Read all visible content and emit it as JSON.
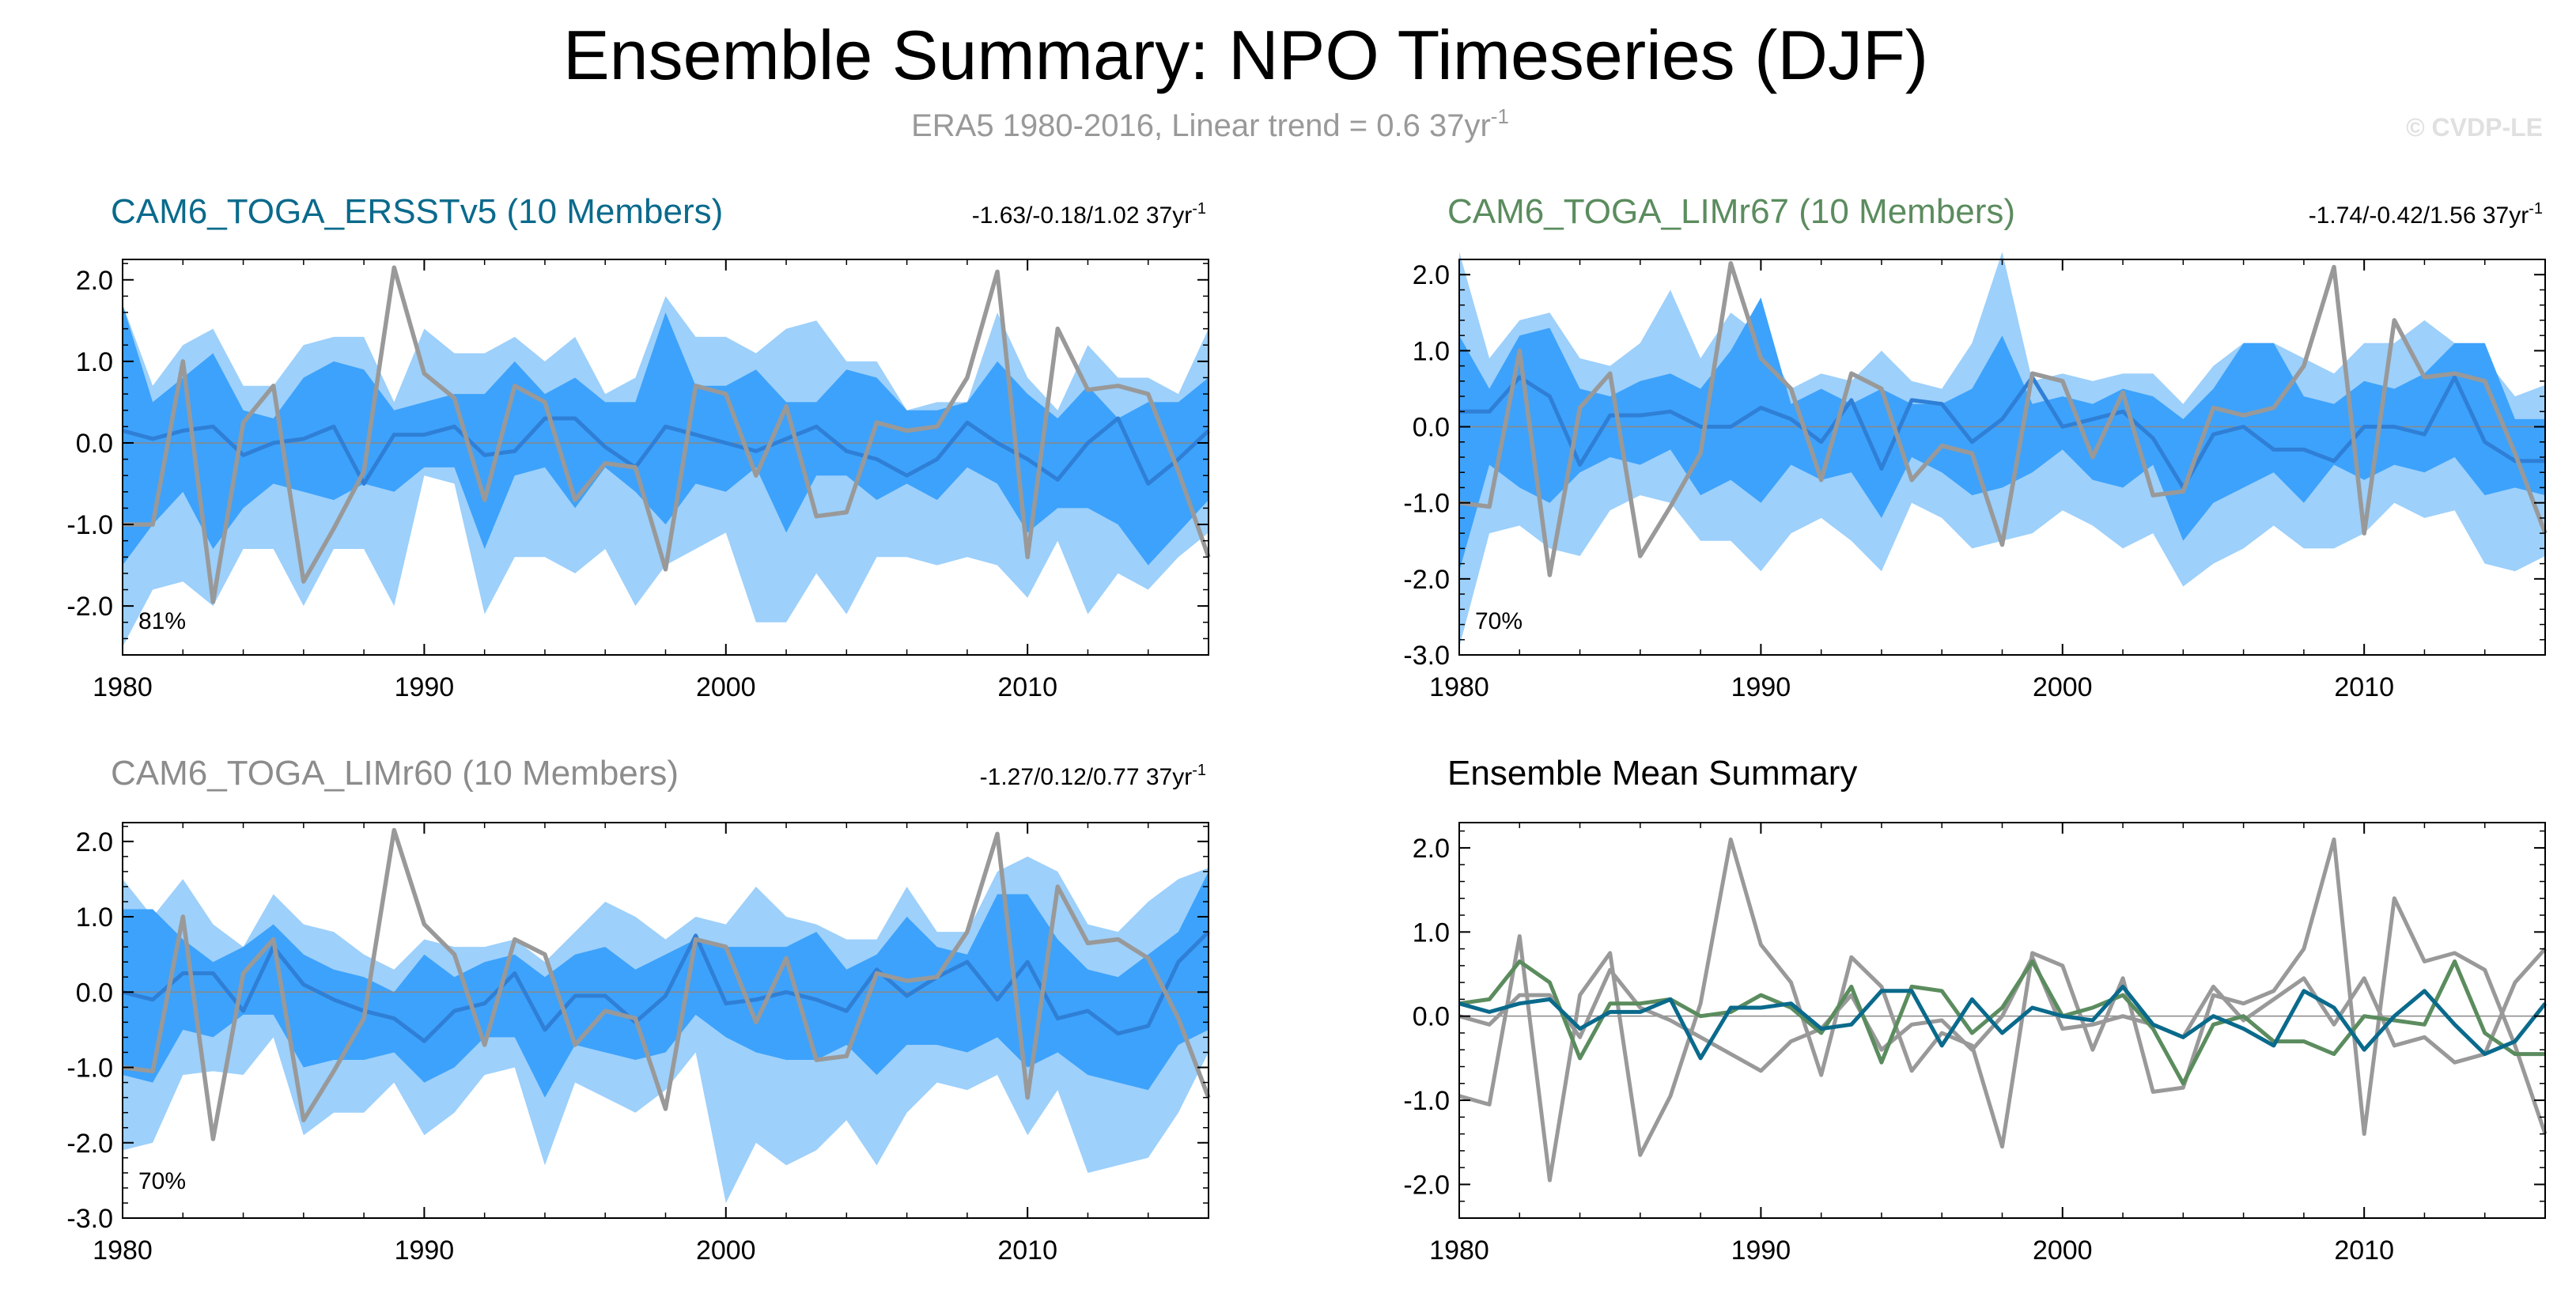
{
  "title": "Ensemble Summary: NPO Timeseries (DJF)",
  "subtitle": "ERA5 1980-2016, Linear trend = 0.6 37yr",
  "subtitle_sup": "-1",
  "credit": "© CVDP-LE",
  "colors": {
    "obs": "#999999",
    "outer_band": "#9dd0fb",
    "inner_band": "#3da2fb",
    "ens_mean": "#2f7fd6",
    "ersst": "#0a6a8c",
    "limr67": "#5b8c5e",
    "limr60": "#8c8c8c"
  },
  "chart_data": [
    {
      "type": "area",
      "panel": "CAM6_TOGA_ERSSTv5",
      "title": "CAM6_TOGA_ERSSTv5 (10 Members)",
      "title_color": "#0a6a8c",
      "trend": "-1.63/-0.18/1.02 37yr",
      "trend_sup": "-1",
      "percent": "81%",
      "xlim": [
        1980,
        2016
      ],
      "ylim": [
        -2.6,
        2.25
      ],
      "yticks": [
        -2.0,
        -1.0,
        0.0,
        1.0,
        2.0
      ],
      "yticklabels": [
        "-2.0",
        "-1.0",
        "0.0",
        "1.0",
        "2.0"
      ],
      "xticks": [
        1980,
        1990,
        2000,
        2010
      ],
      "xticklabels": [
        "1980",
        "1990",
        "2000",
        "2010"
      ],
      "series": [
        {
          "name": "outer",
          "min": [
            -2.5,
            -1.8,
            -1.7,
            -2.0,
            -1.3,
            -1.3,
            -2.0,
            -1.3,
            -1.3,
            -2.0,
            -0.4,
            -0.5,
            -2.1,
            -1.4,
            -1.4,
            -1.6,
            -1.3,
            -2.0,
            -1.5,
            -1.3,
            -1.1,
            -2.2,
            -2.2,
            -1.6,
            -2.1,
            -1.4,
            -1.4,
            -1.5,
            -1.4,
            -1.5,
            -1.9,
            -1.2,
            -2.1,
            -1.6,
            -1.8,
            -1.4,
            -1.1
          ],
          "max": [
            1.7,
            0.7,
            1.2,
            1.4,
            0.7,
            0.7,
            1.2,
            1.3,
            1.3,
            0.5,
            1.4,
            1.1,
            1.1,
            1.3,
            1.0,
            1.3,
            0.6,
            0.8,
            1.8,
            1.3,
            1.3,
            1.1,
            1.4,
            1.5,
            1.0,
            1.0,
            0.4,
            0.5,
            0.5,
            1.6,
            0.8,
            0.4,
            1.2,
            0.8,
            0.8,
            0.6,
            1.4
          ]
        },
        {
          "name": "inner",
          "min": [
            -1.5,
            -1.0,
            -0.6,
            -1.3,
            -0.8,
            -0.5,
            -0.6,
            -0.7,
            -0.5,
            -0.6,
            -0.3,
            -0.3,
            -1.3,
            -0.4,
            -0.3,
            -0.8,
            -0.3,
            -0.6,
            -1.0,
            -0.5,
            -0.6,
            -0.3,
            -1.1,
            -0.4,
            -0.4,
            -0.7,
            -0.5,
            -0.7,
            -0.3,
            -0.5,
            -1.1,
            -0.8,
            -0.8,
            -1.0,
            -1.5,
            -1.1,
            -0.7
          ],
          "max": [
            1.7,
            0.5,
            0.8,
            1.1,
            0.4,
            0.3,
            0.8,
            1.0,
            0.9,
            0.4,
            0.5,
            0.6,
            0.6,
            1.0,
            0.6,
            0.8,
            0.5,
            0.5,
            1.6,
            0.7,
            0.7,
            0.9,
            0.5,
            0.5,
            0.9,
            0.8,
            0.4,
            0.4,
            0.5,
            1.0,
            0.6,
            0.3,
            0.7,
            0.3,
            0.5,
            0.5,
            0.8
          ]
        },
        {
          "name": "ens_mean",
          "values": [
            0.15,
            0.05,
            0.15,
            0.2,
            -0.15,
            0.0,
            0.05,
            0.2,
            -0.5,
            0.1,
            0.1,
            0.2,
            -0.15,
            -0.1,
            0.3,
            0.3,
            -0.05,
            -0.3,
            0.2,
            0.1,
            0.0,
            -0.1,
            0.05,
            0.2,
            -0.1,
            -0.2,
            -0.4,
            -0.2,
            0.25,
            0.0,
            -0.2,
            -0.45,
            0.0,
            0.3,
            -0.5,
            -0.2,
            0.15
          ]
        },
        {
          "name": "obs",
          "values": [
            -1.0,
            -1.0,
            1.0,
            -1.95,
            0.25,
            0.7,
            -1.7,
            -1.05,
            -0.35,
            2.15,
            0.85,
            0.55,
            -0.7,
            0.7,
            0.5,
            -0.7,
            -0.25,
            -0.3,
            -1.55,
            0.7,
            0.6,
            -0.4,
            0.45,
            -0.9,
            -0.85,
            0.25,
            0.15,
            0.2,
            0.8,
            2.1,
            -1.4,
            1.4,
            0.65,
            0.7,
            0.6,
            -0.35,
            -1.4
          ]
        }
      ]
    },
    {
      "type": "area",
      "panel": "CAM6_TOGA_LIMr67",
      "title": "CAM6_TOGA_LIMr67 (10 Members)",
      "title_color": "#5b8c5e",
      "trend": "-1.74/-0.42/1.56 37yr",
      "trend_sup": "-1",
      "percent": "70%",
      "xlim": [
        1980,
        2016
      ],
      "ylim": [
        -3.0,
        2.2
      ],
      "yticks": [
        -3.0,
        -2.0,
        -1.0,
        0.0,
        1.0,
        2.0
      ],
      "yticklabels": [
        "-3.0",
        "-2.0",
        "-1.0",
        "0.0",
        "1.0",
        "2.0"
      ],
      "xticks": [
        1980,
        1990,
        2000,
        2010
      ],
      "xticklabels": [
        "1980",
        "1990",
        "2000",
        "2010"
      ],
      "series": [
        {
          "name": "outer",
          "min": [
            -2.9,
            -1.4,
            -1.3,
            -1.6,
            -1.7,
            -1.1,
            -0.9,
            -1.0,
            -1.5,
            -1.5,
            -1.9,
            -1.4,
            -1.2,
            -1.5,
            -1.9,
            -1.0,
            -1.2,
            -1.6,
            -1.5,
            -1.4,
            -1.1,
            -1.3,
            -1.6,
            -1.4,
            -2.1,
            -1.8,
            -1.6,
            -1.3,
            -1.6,
            -1.6,
            -1.4,
            -1.0,
            -1.2,
            -1.1,
            -1.8,
            -1.9,
            -1.7
          ],
          "max": [
            2.3,
            0.9,
            1.4,
            1.5,
            0.9,
            0.8,
            1.1,
            1.8,
            0.9,
            1.5,
            1.2,
            0.5,
            0.7,
            0.6,
            1.0,
            0.6,
            0.5,
            1.1,
            2.3,
            0.6,
            0.7,
            0.6,
            0.7,
            0.7,
            0.3,
            0.8,
            1.1,
            1.1,
            0.9,
            0.7,
            1.1,
            1.1,
            1.4,
            1.1,
            0.9,
            0.4,
            0.55
          ]
        },
        {
          "name": "inner",
          "min": [
            -1.9,
            -0.5,
            -0.8,
            -1.0,
            -0.6,
            -0.4,
            -0.5,
            -0.3,
            -0.9,
            -0.7,
            -1.0,
            -0.5,
            -0.7,
            -0.6,
            -1.2,
            -0.4,
            -0.6,
            -0.9,
            -0.8,
            -0.6,
            -0.3,
            -0.7,
            -0.8,
            -0.5,
            -1.5,
            -1.0,
            -0.8,
            -0.6,
            -1.0,
            -0.5,
            -0.7,
            -0.5,
            -0.6,
            -0.4,
            -0.9,
            -0.8,
            -0.9
          ],
          "max": [
            1.2,
            0.5,
            1.2,
            1.3,
            0.5,
            0.4,
            0.6,
            0.7,
            0.5,
            1.0,
            1.7,
            0.3,
            0.5,
            0.3,
            0.5,
            0.3,
            0.3,
            0.5,
            1.2,
            0.3,
            0.4,
            0.3,
            0.5,
            0.4,
            0.1,
            0.5,
            1.1,
            1.1,
            0.4,
            0.3,
            0.6,
            0.5,
            0.7,
            1.1,
            1.1,
            0.1,
            0.1
          ]
        },
        {
          "name": "ens_mean",
          "values": [
            0.2,
            0.2,
            0.65,
            0.4,
            -0.5,
            0.15,
            0.15,
            0.2,
            0.0,
            0.0,
            0.25,
            0.1,
            -0.2,
            0.35,
            -0.55,
            0.35,
            0.3,
            -0.2,
            0.1,
            0.65,
            0.0,
            0.1,
            0.2,
            -0.15,
            -0.8,
            -0.1,
            0.0,
            -0.3,
            -0.3,
            -0.45,
            0.0,
            0.0,
            -0.1,
            0.65,
            -0.2,
            -0.45,
            -0.45
          ]
        },
        {
          "name": "obs",
          "values": [
            -1.0,
            -1.05,
            1.0,
            -1.95,
            0.25,
            0.7,
            -1.7,
            -1.05,
            -0.35,
            2.15,
            0.9,
            0.5,
            -0.7,
            0.7,
            0.5,
            -0.7,
            -0.25,
            -0.35,
            -1.55,
            0.7,
            0.6,
            -0.4,
            0.45,
            -0.9,
            -0.85,
            0.25,
            0.15,
            0.25,
            0.8,
            2.1,
            -1.4,
            1.4,
            0.65,
            0.7,
            0.6,
            -0.35,
            -1.4
          ]
        }
      ]
    },
    {
      "type": "area",
      "panel": "CAM6_TOGA_LIMr60",
      "title": "CAM6_TOGA_LIMr60 (10 Members)",
      "title_color": "#8c8c8c",
      "trend": "-1.27/0.12/0.77 37yr",
      "trend_sup": "-1",
      "percent": "70%",
      "xlim": [
        1980,
        2016
      ],
      "ylim": [
        -3.0,
        2.25
      ],
      "yticks": [
        -3.0,
        -2.0,
        -1.0,
        0.0,
        1.0,
        2.0
      ],
      "yticklabels": [
        "-3.0",
        "-2.0",
        "-1.0",
        "0.0",
        "1.0",
        "2.0"
      ],
      "xticks": [
        1980,
        1990,
        2000,
        2010
      ],
      "xticklabels": [
        "1980",
        "1990",
        "2000",
        "2010"
      ],
      "series": [
        {
          "name": "outer",
          "min": [
            -2.1,
            -2.0,
            -1.1,
            -1.05,
            -1.1,
            -0.6,
            -1.9,
            -1.6,
            -1.6,
            -1.2,
            -1.9,
            -1.6,
            -1.1,
            -1.0,
            -2.3,
            -1.2,
            -1.4,
            -1.6,
            -1.3,
            -0.8,
            -2.8,
            -2.0,
            -2.3,
            -2.1,
            -1.7,
            -2.3,
            -1.6,
            -1.2,
            -1.3,
            -1.1,
            -1.9,
            -1.3,
            -2.4,
            -2.3,
            -2.2,
            -1.6,
            -0.8
          ],
          "max": [
            1.5,
            1.0,
            1.5,
            0.9,
            0.6,
            1.3,
            0.9,
            0.8,
            0.5,
            0.3,
            0.7,
            0.6,
            0.6,
            0.7,
            0.4,
            0.8,
            1.2,
            1.0,
            0.7,
            1.0,
            0.9,
            1.4,
            1.0,
            0.9,
            0.7,
            0.7,
            1.4,
            0.8,
            0.8,
            1.6,
            1.8,
            1.6,
            0.9,
            0.8,
            1.2,
            1.5,
            1.65
          ]
        },
        {
          "name": "inner",
          "min": [
            -1.1,
            -1.2,
            -0.5,
            -0.6,
            -0.3,
            -0.3,
            -1.0,
            -0.9,
            -0.9,
            -0.8,
            -1.2,
            -1.0,
            -0.6,
            -0.6,
            -1.4,
            -0.7,
            -0.8,
            -0.9,
            -0.8,
            -0.3,
            -0.6,
            -0.8,
            -0.9,
            -0.9,
            -0.7,
            -1.1,
            -0.7,
            -0.7,
            -0.8,
            -0.6,
            -1.0,
            -0.8,
            -1.1,
            -1.2,
            -1.3,
            -0.7,
            -0.5
          ],
          "max": [
            1.1,
            1.1,
            0.7,
            0.4,
            0.6,
            0.9,
            0.5,
            0.3,
            0.2,
            0.0,
            0.5,
            0.2,
            0.4,
            0.5,
            0.2,
            0.5,
            0.6,
            0.3,
            0.5,
            0.7,
            0.6,
            0.6,
            0.6,
            0.8,
            0.3,
            0.5,
            1.0,
            0.6,
            0.5,
            1.3,
            1.3,
            0.7,
            0.3,
            0.2,
            0.5,
            0.8,
            1.6
          ]
        },
        {
          "name": "ens_mean",
          "values": [
            0.0,
            -0.1,
            0.25,
            0.25,
            -0.25,
            0.6,
            0.1,
            -0.1,
            -0.25,
            -0.35,
            -0.65,
            -0.25,
            -0.15,
            0.25,
            -0.5,
            -0.05,
            -0.05,
            -0.4,
            -0.05,
            0.75,
            -0.15,
            -0.1,
            0.0,
            -0.1,
            -0.25,
            0.3,
            -0.05,
            0.2,
            0.4,
            -0.1,
            0.4,
            -0.35,
            -0.25,
            -0.55,
            -0.45,
            0.4,
            0.8
          ]
        },
        {
          "name": "obs",
          "values": [
            -1.0,
            -1.05,
            1.0,
            -1.95,
            0.25,
            0.7,
            -1.7,
            -1.05,
            -0.35,
            2.15,
            0.9,
            0.5,
            -0.7,
            0.7,
            0.5,
            -0.7,
            -0.25,
            -0.35,
            -1.55,
            0.7,
            0.6,
            -0.4,
            0.45,
            -0.9,
            -0.85,
            0.25,
            0.15,
            0.2,
            0.8,
            2.1,
            -1.4,
            1.4,
            0.65,
            0.7,
            0.45,
            -0.35,
            -1.4
          ]
        }
      ]
    },
    {
      "type": "line",
      "panel": "Ensemble Mean Summary",
      "title": "Ensemble Mean Summary",
      "title_color": "#000000",
      "trend": "",
      "trend_sup": "",
      "percent": "",
      "xlim": [
        1980,
        2016
      ],
      "ylim": [
        -2.4,
        2.3
      ],
      "yticks": [
        -2.0,
        -1.0,
        0.0,
        1.0,
        2.0
      ],
      "yticklabels": [
        "-2.0",
        "-1.0",
        "0.0",
        "1.0",
        "2.0"
      ],
      "xticks": [
        1980,
        1990,
        2000,
        2010
      ],
      "xticklabels": [
        "1980",
        "1990",
        "2000",
        "2010"
      ],
      "series": [
        {
          "name": "obs",
          "color": "#999999",
          "values": [
            -0.95,
            -1.05,
            0.95,
            -1.95,
            0.25,
            0.75,
            -1.65,
            -0.95,
            0.15,
            2.1,
            0.85,
            0.4,
            -0.7,
            0.7,
            0.35,
            -0.65,
            -0.2,
            -0.35,
            -1.55,
            0.75,
            0.6,
            -0.4,
            0.45,
            -0.9,
            -0.85,
            0.25,
            0.15,
            0.3,
            0.8,
            2.1,
            -1.4,
            1.4,
            0.65,
            0.75,
            0.55,
            -0.35,
            -1.4
          ]
        },
        {
          "name": "limr60",
          "color": "#999999",
          "values": [
            0.0,
            -0.1,
            0.25,
            0.25,
            -0.25,
            0.55,
            0.1,
            -0.05,
            -0.25,
            -0.45,
            -0.65,
            -0.3,
            -0.15,
            0.25,
            -0.4,
            -0.1,
            -0.05,
            -0.4,
            0.0,
            0.7,
            -0.15,
            -0.1,
            0.0,
            -0.1,
            -0.25,
            0.35,
            -0.05,
            0.2,
            0.45,
            -0.1,
            0.45,
            -0.35,
            -0.25,
            -0.55,
            -0.45,
            0.4,
            0.8
          ]
        },
        {
          "name": "limr67",
          "color": "#5b8c5e",
          "values": [
            0.15,
            0.2,
            0.65,
            0.4,
            -0.5,
            0.15,
            0.15,
            0.2,
            0.0,
            0.05,
            0.25,
            0.1,
            -0.2,
            0.35,
            -0.55,
            0.35,
            0.3,
            -0.2,
            0.1,
            0.65,
            0.0,
            0.1,
            0.25,
            -0.15,
            -0.8,
            -0.1,
            0.0,
            -0.3,
            -0.3,
            -0.45,
            0.0,
            -0.05,
            -0.1,
            0.65,
            -0.2,
            -0.45,
            -0.45
          ]
        },
        {
          "name": "ersst",
          "color": "#0a6a8c",
          "values": [
            0.15,
            0.05,
            0.15,
            0.2,
            -0.15,
            0.05,
            0.05,
            0.2,
            -0.5,
            0.1,
            0.1,
            0.15,
            -0.15,
            -0.1,
            0.3,
            0.3,
            -0.35,
            0.2,
            -0.2,
            0.1,
            0.0,
            -0.05,
            0.35,
            -0.1,
            -0.25,
            0.0,
            -0.15,
            -0.35,
            0.3,
            0.1,
            -0.4,
            0.0,
            0.3,
            -0.1,
            -0.45,
            -0.3,
            0.15
          ]
        }
      ]
    }
  ]
}
